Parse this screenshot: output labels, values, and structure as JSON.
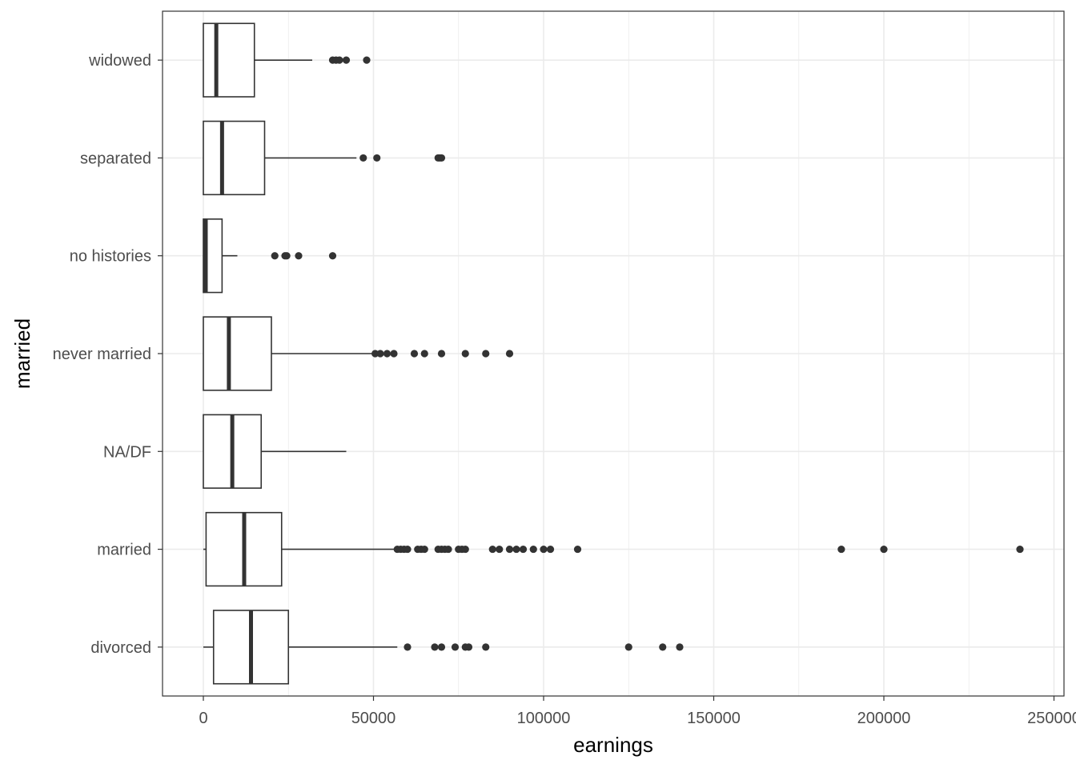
{
  "chart_data": {
    "type": "boxplot",
    "orientation": "horizontal",
    "xlabel": "earnings",
    "ylabel": "married",
    "xlim": [
      -12000,
      252000
    ],
    "x_ticks": [
      0,
      50000,
      100000,
      150000,
      200000,
      250000
    ],
    "x_tick_labels": [
      "0",
      "50000",
      "100000",
      "150000",
      "200000",
      "250000"
    ],
    "grid": true,
    "theme": "bw",
    "categories": [
      "divorced",
      "married",
      "NA/DF",
      "never married",
      "no histories",
      "separated",
      "widowed"
    ],
    "boxes": [
      {
        "category": "divorced",
        "whisker_low": 0,
        "q1": 3000,
        "median": 14000,
        "q3": 25000,
        "whisker_high": 57000,
        "outliers": [
          60000,
          68000,
          70000,
          74000,
          77000,
          78000,
          83000,
          125000,
          135000,
          140000
        ]
      },
      {
        "category": "married",
        "whisker_low": 0,
        "q1": 800,
        "median": 12000,
        "q3": 23000,
        "whisker_high": 57000,
        "outliers": [
          57000,
          58000,
          59000,
          60000,
          63000,
          64000,
          65000,
          69000,
          70000,
          71000,
          72000,
          75000,
          76000,
          77000,
          85000,
          87000,
          90000,
          92000,
          94000,
          97000,
          100000,
          102000,
          110000,
          187500,
          200000,
          240000
        ]
      },
      {
        "category": "NA/DF",
        "whisker_low": 0,
        "q1": 0,
        "median": 8500,
        "q3": 17000,
        "whisker_high": 42000,
        "outliers": []
      },
      {
        "category": "never married",
        "whisker_low": 0,
        "q1": 0,
        "median": 7500,
        "q3": 20000,
        "whisker_high": 50000,
        "outliers": [
          50500,
          52000,
          54000,
          56000,
          62000,
          65000,
          70000,
          77000,
          83000,
          90000
        ]
      },
      {
        "category": "no histories",
        "whisker_low": 0,
        "q1": 0,
        "median": 700,
        "q3": 5500,
        "whisker_high": 10000,
        "outliers": [
          21000,
          24000,
          24500,
          28000,
          38000
        ]
      },
      {
        "category": "separated",
        "whisker_low": 0,
        "q1": 0,
        "median": 5500,
        "q3": 18000,
        "whisker_high": 45000,
        "outliers": [
          47000,
          51000,
          69000,
          69500,
          70000
        ]
      },
      {
        "category": "widowed",
        "whisker_low": 0,
        "q1": 0,
        "median": 3800,
        "q3": 15000,
        "whisker_high": 32000,
        "outliers": [
          38000,
          39000,
          40000,
          42000,
          48000
        ]
      }
    ],
    "colors": {
      "box_stroke": "#333333",
      "median": "#333333",
      "outlier": "#333333",
      "grid": "#ebebeb",
      "panel_border": "#333333",
      "tick_label": "#4d4d4d",
      "axis_title": "#000000"
    }
  }
}
